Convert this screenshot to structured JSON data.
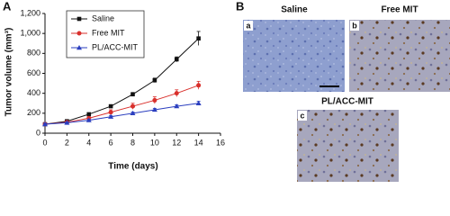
{
  "chart_data": {
    "type": "line",
    "panel_label": "A",
    "x_label": "Time (days)",
    "y_label": "Tumor volume (mm³)",
    "x": [
      0,
      2,
      4,
      6,
      8,
      10,
      12,
      14
    ],
    "series": [
      {
        "name": "Saline",
        "color": "#111111",
        "marker": "square",
        "values": [
          90,
          120,
          190,
          270,
          390,
          530,
          740,
          950
        ],
        "errors": [
          8,
          10,
          12,
          15,
          18,
          22,
          25,
          70
        ]
      },
      {
        "name": "Free MIT",
        "color": "#d9302c",
        "marker": "circle",
        "values": [
          90,
          110,
          150,
          210,
          270,
          330,
          400,
          480
        ],
        "errors": [
          8,
          10,
          15,
          25,
          30,
          35,
          35,
          40
        ]
      },
      {
        "name": "PL/ACC-MIT",
        "color": "#2b3fbf",
        "marker": "triangle",
        "values": [
          90,
          105,
          130,
          165,
          200,
          235,
          270,
          300
        ],
        "errors": [
          8,
          8,
          10,
          12,
          12,
          14,
          15,
          20
        ]
      }
    ],
    "xlim": [
      0,
      16
    ],
    "xticks": [
      0,
      2,
      4,
      6,
      8,
      10,
      12,
      14,
      16
    ],
    "ylim": [
      0,
      1200
    ],
    "yticks": [
      0,
      200,
      400,
      600,
      800,
      {
        "value": 1000,
        "label": "1,000"
      },
      {
        "value": 1200,
        "label": "1,200"
      }
    ],
    "legend": "upper left"
  },
  "panel_b": {
    "label": "B",
    "images": [
      {
        "title": "Saline",
        "letter": "a"
      },
      {
        "title": "Free MIT",
        "letter": "b"
      },
      {
        "title": "PL/ACC-MIT",
        "letter": "c"
      }
    ]
  }
}
